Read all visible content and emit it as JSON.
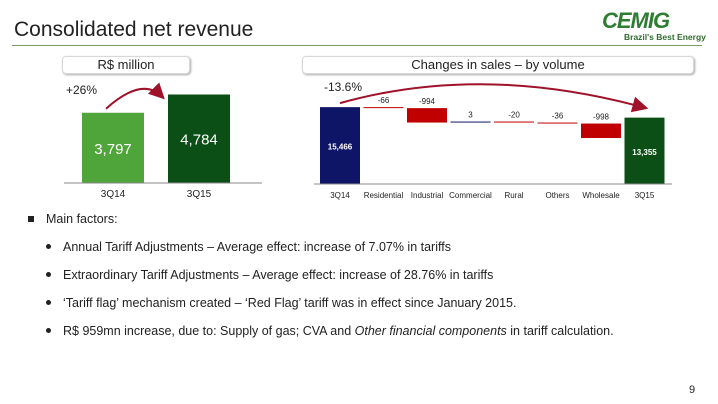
{
  "title": "Consolidated net revenue",
  "logo": {
    "name": "CEMIG",
    "tagline": "Brazil's Best Energy"
  },
  "left_panel": {
    "header": "R$ million",
    "growth_label": "+26%"
  },
  "right_panel": {
    "header": "Changes in sales – by volume",
    "change_label": "-13.6%"
  },
  "colors": {
    "green_light": "#4fa53a",
    "green_dark": "#0b4f16",
    "navy": "#0f1566",
    "red": "#c00000",
    "accent_line": "#7a9a6a"
  },
  "chart_data": [
    {
      "type": "bar",
      "categories": [
        "3Q14",
        "3Q15"
      ],
      "values": [
        3797,
        4784
      ],
      "value_labels": [
        "3,797",
        "4,784"
      ],
      "title": "R$ million",
      "annotation": "+26%"
    },
    {
      "type": "waterfall",
      "title": "Changes in sales – by volume",
      "annotation": "-13.6%",
      "categories": [
        "3Q14",
        "Residential",
        "Industrial",
        "Commercial",
        "Rural",
        "Others",
        "Wholesale",
        "3Q15"
      ],
      "values": [
        15466,
        -66,
        -994,
        3,
        -20,
        -36,
        -998,
        13355
      ],
      "value_labels": [
        "15,466",
        "-66",
        "-994",
        "3",
        "-20",
        "-36",
        "-998",
        "13,355"
      ],
      "kinds": [
        "total",
        "delta",
        "delta",
        "delta",
        "delta",
        "delta",
        "delta",
        "total"
      ]
    }
  ],
  "bullets": {
    "main": "Main factors:",
    "items": [
      {
        "text": "Annual Tariff Adjustments – Average effect: increase of 7.07% in tariffs"
      },
      {
        "text": "Extraordinary Tariff Adjustments – Average effect: increase of 28.76% in tariffs"
      },
      {
        "text": "‘Tariff flag’ mechanism created – ‘Red Flag’ tariff was in effect since January 2015."
      },
      {
        "pre": "R$ 959mn increase, due to: Supply of gas; CVA and ",
        "em": "Other financial components",
        "post": " in tariff calculation."
      }
    ]
  },
  "page_number": "9"
}
